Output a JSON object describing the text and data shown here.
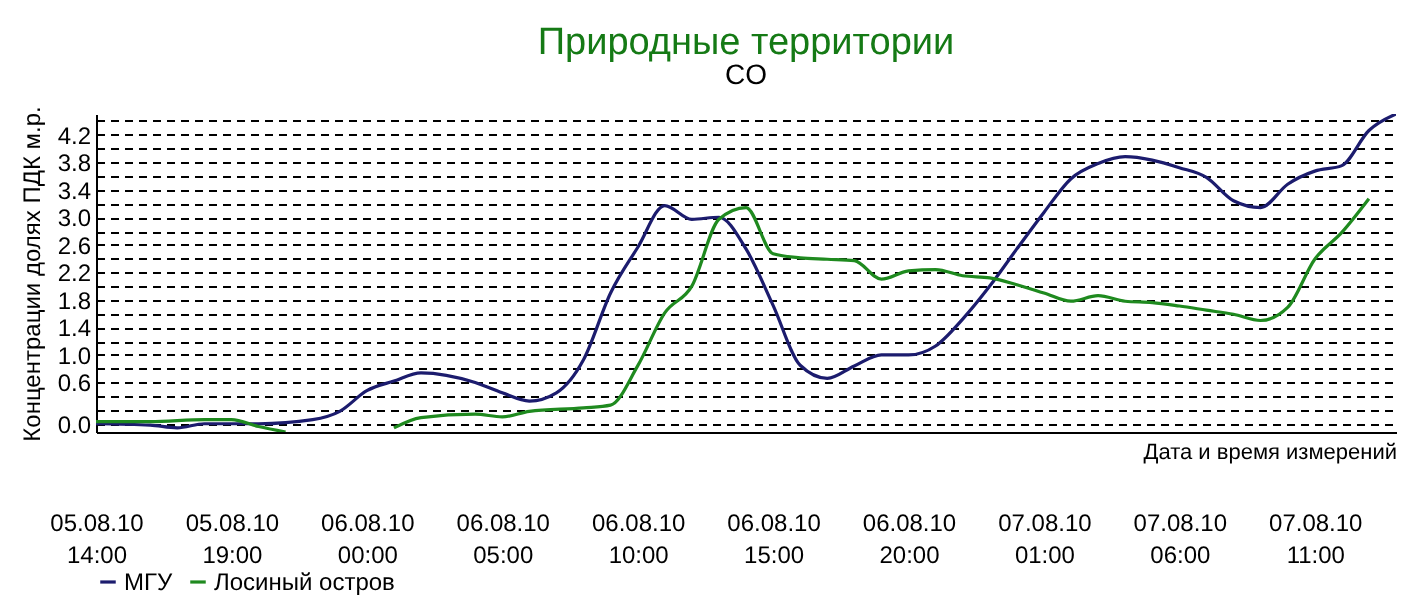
{
  "chart_data": {
    "type": "line",
    "title": "Природные территории",
    "subtitle": "CO",
    "xlabel": "Дата и время измерений",
    "ylabel": "Концентрации  долях ПДК м.р.",
    "xlim": [
      "--08-05T14:00",
      "--08-07T14:00"
    ],
    "xticks": [
      {
        "value": "--08-05T14:00",
        "label": "05.08.10 14:00"
      },
      {
        "value": "--08-05T19:00",
        "label": "05.08.10 19:00"
      },
      {
        "value": "--08-06T00:00",
        "label": "06.08.10 00:00"
      },
      {
        "value": "--08-06T05:00",
        "label": "06.08.10 05:00"
      },
      {
        "value": "--08-06T10:00",
        "label": "06.08.10 10:00"
      },
      {
        "value": "--08-06T15:00",
        "label": "06.08.10 15:00"
      },
      {
        "value": "--08-06T20:00",
        "label": "06.08.10 20:00"
      },
      {
        "value": "--08-07T01:00",
        "label": "07.08.10 01:00"
      },
      {
        "value": "--08-07T06:00",
        "label": "07.08.10 06:00"
      },
      {
        "value": "--08-07T11:00",
        "label": "07.08.10 11:00"
      }
    ],
    "ylim": [
      -0.12,
      4.5
    ],
    "yticks": [
      {
        "value": 0,
        "label": "0.0"
      },
      {
        "value": 0.2,
        "label": null
      },
      {
        "value": 0.4,
        "label": null
      },
      {
        "value": 0.6,
        "label": "0.6"
      },
      {
        "value": 0.8,
        "label": null
      },
      {
        "value": 1.0,
        "label": "1.0"
      },
      {
        "value": 1.2,
        "label": null
      },
      {
        "value": 1.4,
        "label": "1.4"
      },
      {
        "value": 1.6,
        "label": null
      },
      {
        "value": 1.8,
        "label": "1.8"
      },
      {
        "value": 2.0,
        "label": null
      },
      {
        "value": 2.2,
        "label": "2.2"
      },
      {
        "value": 2.4,
        "label": null
      },
      {
        "value": 2.6,
        "label": "2.6"
      },
      {
        "value": 2.8,
        "label": null
      },
      {
        "value": 3.0,
        "label": "3.0"
      },
      {
        "value": 3.2,
        "label": null
      },
      {
        "value": 3.4,
        "label": "3.4"
      },
      {
        "value": 3.6,
        "label": null
      },
      {
        "value": 3.8,
        "label": "3.8"
      },
      {
        "value": 4.0,
        "label": null
      },
      {
        "value": 4.2,
        "label": "4.2"
      },
      {
        "value": 4.4,
        "label": null
      }
    ],
    "grid": "y",
    "legend": "bottom",
    "line_style": "solid",
    "series": [
      {
        "name": "МГУ",
        "color": "#1c1c6e",
        "x": [
          "--08-05T14:00",
          "--08-05T16:00",
          "--08-05T17:00",
          "--08-05T18:00",
          "--08-05T20:00",
          "--08-05T22:00",
          "--08-05T23:00",
          "--08-06T00:00",
          "--08-06T01:00",
          "--08-06T02:00",
          "--08-06T04:00",
          "--08-06T05:00",
          "--08-06T06:00",
          "--08-06T07:00",
          "--08-06T08:00",
          "--08-06T09:00",
          "--08-06T10:00",
          "--08-06T11:00",
          "--08-06T12:00",
          "--08-06T13:00",
          "--08-06T14:00",
          "--08-06T15:00",
          "--08-06T16:00",
          "--08-06T17:00",
          "--08-06T18:00",
          "--08-06T19:00",
          "--08-06T20:00",
          "--08-06T21:00",
          "--08-06T22:00",
          "--08-06T23:00",
          "--08-07T00:00",
          "--08-07T01:00",
          "--08-07T02:00",
          "--08-07T03:00",
          "--08-07T04:00",
          "--08-07T05:00",
          "--08-07T06:00",
          "--08-07T07:00",
          "--08-07T08:00",
          "--08-07T09:00",
          "--08-07T10:00",
          "--08-07T11:00",
          "--08-07T12:00",
          "--08-07T13:00",
          "--08-07T14:00"
        ],
        "values": [
          0.0,
          -0.02,
          -0.06,
          0.0,
          0.0,
          0.06,
          0.18,
          0.48,
          0.62,
          0.74,
          0.6,
          0.45,
          0.33,
          0.45,
          0.93,
          1.9,
          2.56,
          3.17,
          2.97,
          3.0,
          2.54,
          1.72,
          0.85,
          0.66,
          0.84,
          1.0,
          1.0,
          1.13,
          1.52,
          2.0,
          2.54,
          3.07,
          3.56,
          3.78,
          3.88,
          3.83,
          3.72,
          3.58,
          3.24,
          3.14,
          3.48,
          3.67,
          3.75,
          4.26,
          4.5
        ]
      },
      {
        "name": "Лосиный остров",
        "color": "#1f8a1f",
        "x": [
          "--08-05T14:00",
          "--08-05T16:00",
          "--08-05T18:00",
          "--08-05T19:00",
          "--08-05T20:00",
          "--08-05T21:00",
          "--08-05T23:00",
          "--08-06T01:00",
          "--08-06T02:00",
          "--08-06T04:00",
          "--08-06T05:00",
          "--08-06T06:00",
          "--08-06T08:00",
          "--08-06T09:00",
          "--08-06T10:00",
          "--08-06T11:00",
          "--08-06T12:00",
          "--08-06T13:00",
          "--08-06T14:00",
          "--08-06T15:00",
          "--08-06T16:00",
          "--08-06T17:00",
          "--08-06T18:00",
          "--08-06T19:00",
          "--08-06T20:00",
          "--08-06T21:00",
          "--08-06T22:00",
          "--08-06T23:00",
          "--08-07T00:00",
          "--08-07T01:00",
          "--08-07T02:00",
          "--08-07T03:00",
          "--08-07T04:00",
          "--08-07T05:00",
          "--08-07T06:00",
          "--08-07T07:00",
          "--08-07T08:00",
          "--08-07T09:00",
          "--08-07T10:00",
          "--08-07T11:00",
          "--08-07T12:00",
          "--08-07T13:00"
        ],
        "values": [
          0.03,
          0.03,
          0.06,
          0.06,
          -0.04,
          -0.12,
          null,
          -0.06,
          0.09,
          0.14,
          0.1,
          0.18,
          0.23,
          0.27,
          0.84,
          1.61,
          2.0,
          2.97,
          3.14,
          2.47,
          2.41,
          2.39,
          2.37,
          2.1,
          2.22,
          2.24,
          2.15,
          2.12,
          2.02,
          1.9,
          1.78,
          1.86,
          1.78,
          1.76,
          1.71,
          1.65,
          1.59,
          1.5,
          1.69,
          2.39,
          2.78,
          3.27
        ]
      }
    ]
  }
}
